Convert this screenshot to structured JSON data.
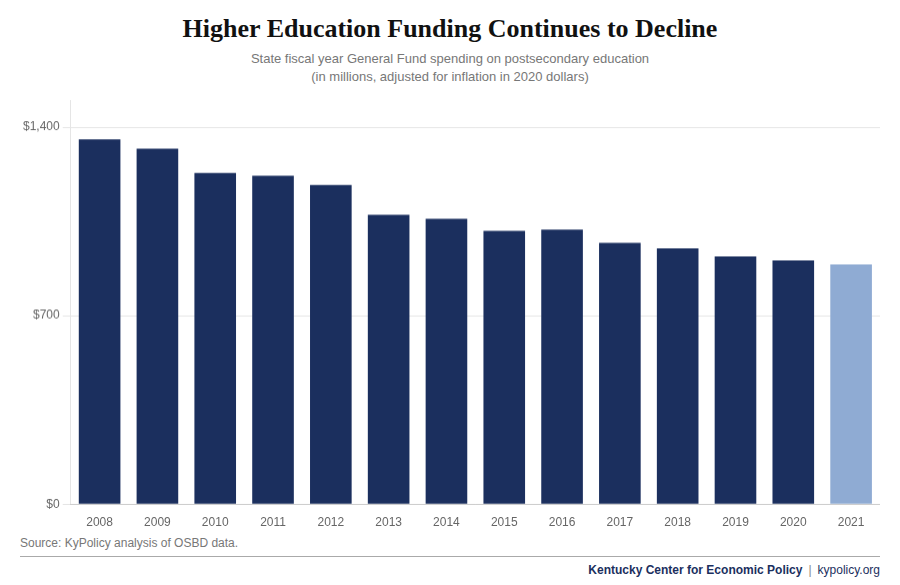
{
  "chart_data": {
    "type": "bar",
    "title": "Higher Education Funding Continues to Decline",
    "subtitle": "State fiscal year General Fund spending on postsecondary education\n(in millions, adjusted for inflation in 2020 dollars)",
    "source": "Source: KyPolicy analysis of OSBD data.",
    "footer": [
      "Kentucky Center for Economic Policy",
      "|",
      "kypolicy.org"
    ],
    "categories": [
      "2008",
      "2009",
      "2010",
      "2011",
      "2012",
      "2013",
      "2014",
      "2015",
      "2016",
      "2017",
      "2018",
      "2019",
      "2020",
      "2021"
    ],
    "values": [
      1355,
      1320,
      1230,
      1220,
      1185,
      1075,
      1060,
      1015,
      1020,
      970,
      950,
      920,
      905,
      890
    ],
    "colors": [
      "#1b2f5e",
      "#1b2f5e",
      "#1b2f5e",
      "#1b2f5e",
      "#1b2f5e",
      "#1b2f5e",
      "#1b2f5e",
      "#1b2f5e",
      "#1b2f5e",
      "#1b2f5e",
      "#1b2f5e",
      "#1b2f5e",
      "#1b2f5e",
      "#8fabd3"
    ],
    "ylim": [
      0,
      1500
    ],
    "yticks": [
      {
        "value": 0,
        "label": "$0"
      },
      {
        "value": 700,
        "label": "$700"
      },
      {
        "value": 1400,
        "label": "$1,400"
      }
    ],
    "grid": true
  }
}
